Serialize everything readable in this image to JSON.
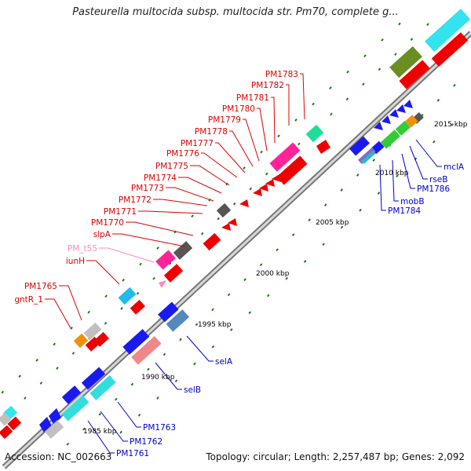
{
  "header": {
    "title": "Pasteurella multocida subsp. multocida str. Pm70, complete g..."
  },
  "footer": {
    "accession": "Accession: NC_002663",
    "summary": "Topology: circular; Length: 2,257,487 bp; Genes: 2,092"
  },
  "scale": {
    "ticks": [
      "1985 kbp",
      "1990 kbp",
      "1995 kbp",
      "2000 kbp",
      "2005 kbp",
      "2010 kbp",
      "2015 kbp"
    ]
  },
  "colors": {
    "backbone": "#8a8a8a",
    "tick": "#1a7a1a",
    "upper_label": "#dd0000",
    "rna_label": "#ff88bb",
    "lower_label": "#0000cc"
  },
  "upper_labels": [
    "PM1783",
    "PM1782",
    "PM1781",
    "PM1780",
    "PM1779",
    "PM1778",
    "PM1777",
    "PM1776",
    "PM1775",
    "PM1774",
    "PM1773",
    "PM1772",
    "PM1771",
    "PM1770",
    "slpA",
    "PM_t55",
    "iunH",
    "PM1765",
    "gntR_1"
  ],
  "lower_labels": [
    "mclA",
    "rseB",
    "PM1786",
    "mobB",
    "PM1784",
    "selA",
    "selB",
    "PM1763",
    "PM1762",
    "PM1761"
  ]
}
